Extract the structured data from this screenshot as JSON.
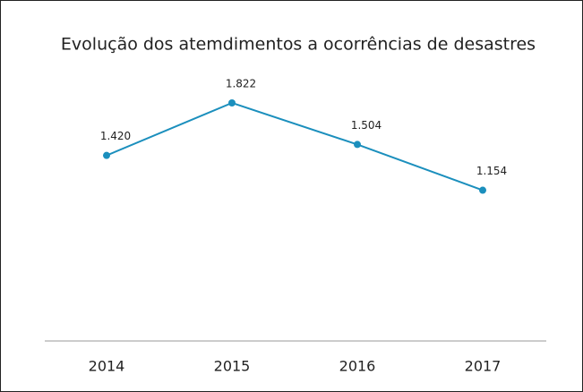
{
  "chart_data": {
    "type": "line",
    "title": "Evolução dos atemdimentos a ocorrências de desastres",
    "categories": [
      "2014",
      "2015",
      "2016",
      "2017"
    ],
    "series": [
      {
        "color": "#1b8fbd",
        "values": [
          1420,
          1822,
          1504,
          1154
        ],
        "value_labels": [
          "1.420",
          "1.822",
          "1.504",
          "1.154"
        ]
      }
    ],
    "ylim": [
      0,
      2000
    ]
  }
}
